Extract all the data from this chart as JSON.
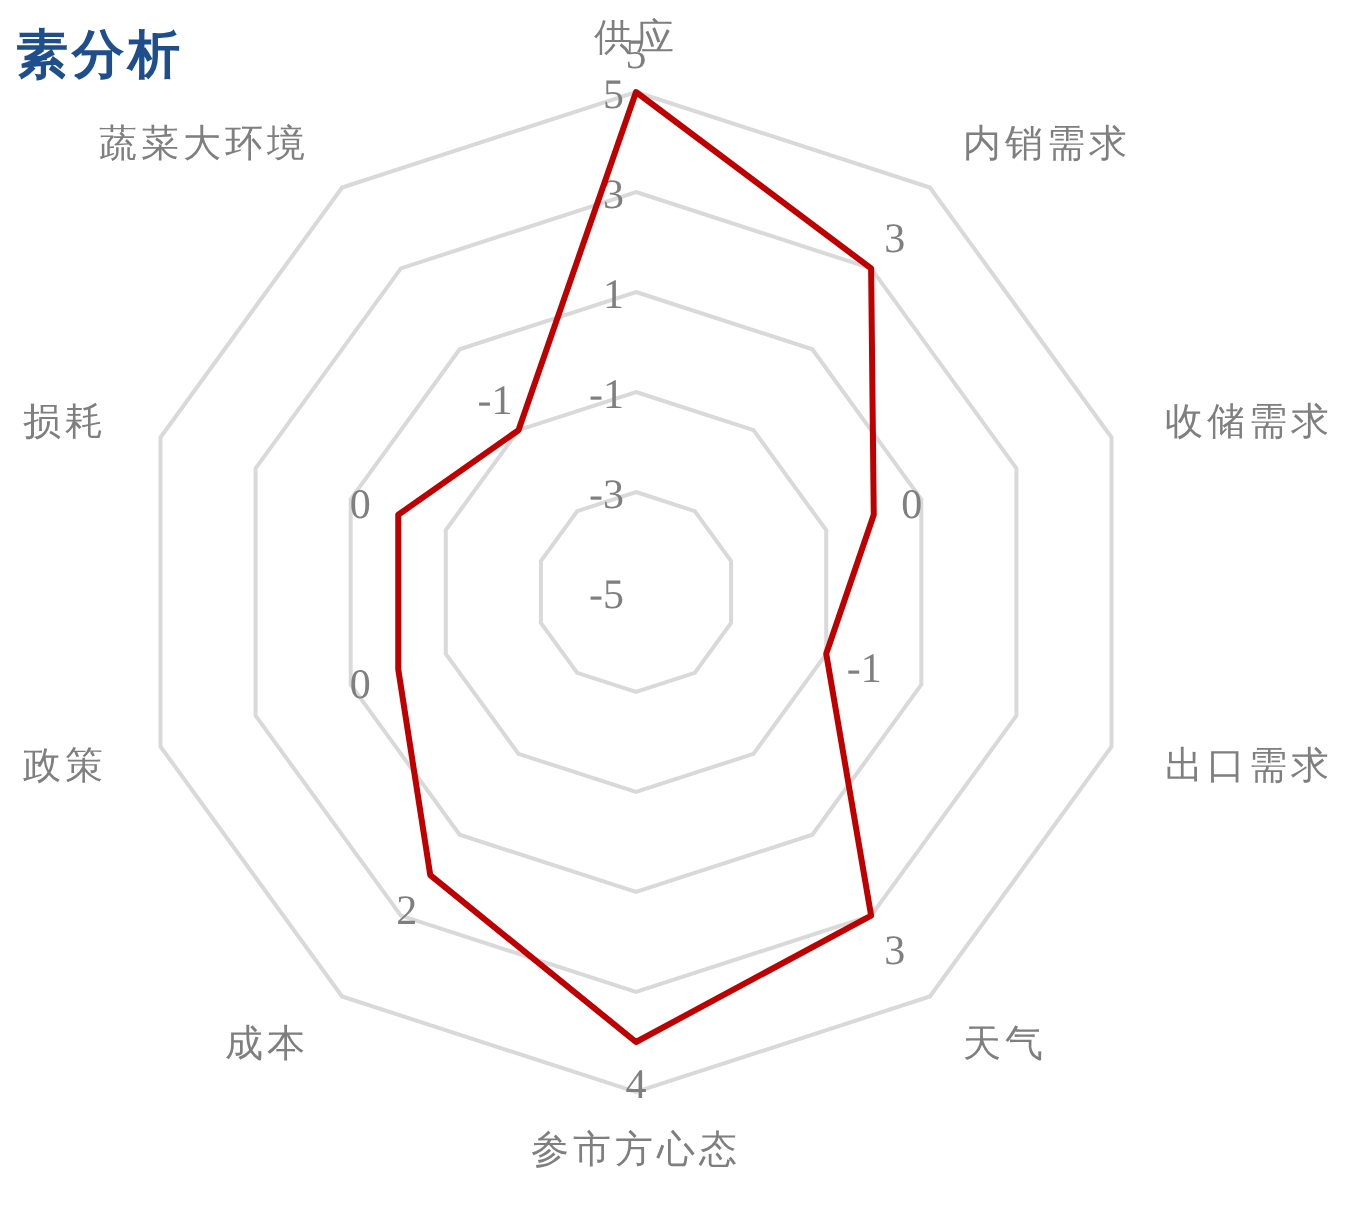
{
  "chart_data": {
    "type": "radar",
    "title": "素分析",
    "categories": [
      "供应",
      "内销需求",
      "收储需求",
      "出口需求",
      "天气",
      "参市方心态",
      "成本",
      "政策",
      "损耗",
      "蔬菜大环境"
    ],
    "series": [
      {
        "color": "#c00000",
        "values": [
          5,
          3,
          0,
          -1,
          3,
          4,
          2,
          0,
          0,
          -1
        ]
      }
    ],
    "ylim": [
      -5,
      5
    ],
    "yticks": [
      -5,
      -3,
      -1,
      1,
      3,
      5
    ],
    "data_labels": true,
    "grid": true,
    "marker": "none",
    "line_style": "solid"
  }
}
